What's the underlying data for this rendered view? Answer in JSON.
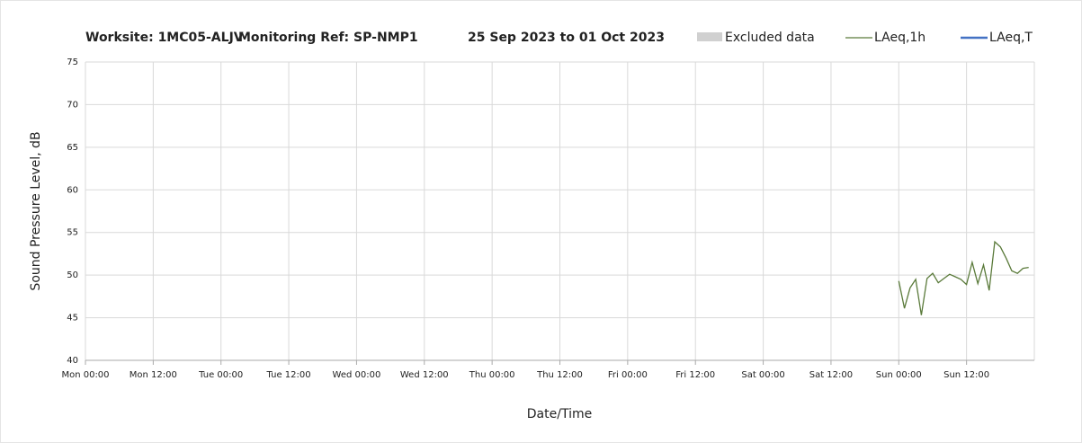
{
  "chart_data": {
    "type": "line",
    "title_parts": [
      "Worksite: 1MC05-ALJV",
      "Monitoring Ref: SP-NMP1",
      "25 Sep 2023 to 01 Oct 2023"
    ],
    "x_label": "Date/Time",
    "y_label": "Sound Pressure Level, dB",
    "excluded": {
      "name": "Excluded data",
      "color": "#d0d0d0"
    },
    "x": [
      144,
      145,
      146,
      147,
      148,
      149,
      150,
      151,
      152,
      153,
      154,
      155,
      156,
      157,
      158,
      159,
      160,
      161,
      162,
      163,
      164,
      165,
      166,
      167
    ],
    "series": [
      {
        "name": "LAeq,1h",
        "color": "#5a7a3a",
        "values": [
          49.3,
          46.1,
          48.5,
          49.5,
          45.3,
          49.6,
          50.2,
          49.1,
          49.6,
          50.1,
          49.8,
          49.5,
          48.9,
          51.5,
          49.0,
          51.2,
          48.2,
          53.9,
          53.3,
          52.0,
          50.5,
          50.2,
          50.8,
          50.9
        ]
      },
      {
        "name": "LAeq,T",
        "color": "#4472c4",
        "values": [
          null,
          null,
          null,
          null,
          null,
          null,
          null,
          null,
          null,
          null,
          null,
          null,
          null,
          null,
          null,
          null,
          null,
          null,
          null,
          null,
          null,
          null,
          null,
          null
        ]
      }
    ],
    "xlim": [
      0,
      168
    ],
    "xticks": [
      {
        "value": 0,
        "label": "Mon 00:00"
      },
      {
        "value": 12,
        "label": "Mon 12:00"
      },
      {
        "value": 24,
        "label": "Tue 00:00"
      },
      {
        "value": 36,
        "label": "Tue 12:00"
      },
      {
        "value": 48,
        "label": "Wed 00:00"
      },
      {
        "value": 60,
        "label": "Wed 12:00"
      },
      {
        "value": 72,
        "label": "Thu 00:00"
      },
      {
        "value": 84,
        "label": "Thu 12:00"
      },
      {
        "value": 96,
        "label": "Fri 00:00"
      },
      {
        "value": 108,
        "label": "Fri 12:00"
      },
      {
        "value": 120,
        "label": "Sat 00:00"
      },
      {
        "value": 132,
        "label": "Sat 12:00"
      },
      {
        "value": 144,
        "label": "Sun 00:00"
      },
      {
        "value": 156,
        "label": "Sun 12:00"
      }
    ],
    "ylim": [
      40,
      75
    ],
    "yticks": [
      40,
      45,
      50,
      55,
      60,
      65,
      70,
      75
    ],
    "grid": true
  }
}
